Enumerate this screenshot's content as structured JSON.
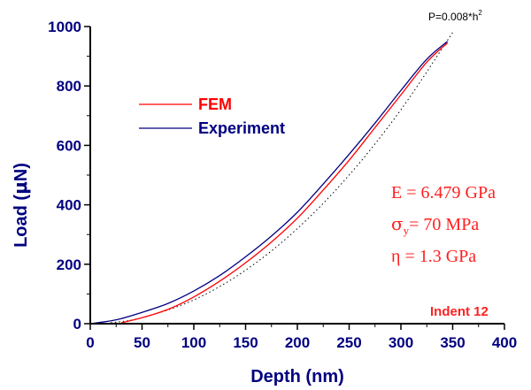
{
  "chart_data": {
    "type": "line",
    "xlabel": "Depth (nm)",
    "ylabel_parts": {
      "before": "Load (",
      "mu": "μ",
      "after": "N)"
    },
    "xlim": [
      0,
      400
    ],
    "ylim": [
      0,
      1000
    ],
    "xticks": [
      "0",
      "50",
      "100",
      "150",
      "200",
      "250",
      "300",
      "350",
      "400"
    ],
    "yticks": [
      "0",
      "200",
      "400",
      "600",
      "800",
      "1000"
    ],
    "grid": false,
    "legend_placement": "upper-left",
    "series": [
      {
        "name": "FEM",
        "color": "#ff0000",
        "x": [
          30,
          50,
          75,
          100,
          125,
          150,
          175,
          200,
          225,
          250,
          275,
          300,
          325,
          345
        ],
        "y": [
          3,
          20,
          48,
          90,
          143,
          205,
          275,
          355,
          450,
          550,
          660,
          770,
          880,
          945
        ]
      },
      {
        "name": "Experiment",
        "color": "#000080",
        "x": [
          0,
          25,
          50,
          75,
          100,
          125,
          150,
          175,
          200,
          225,
          250,
          275,
          300,
          325,
          345
        ],
        "y": [
          0,
          13,
          38,
          68,
          110,
          162,
          225,
          295,
          375,
          470,
          570,
          675,
          785,
          890,
          950
        ]
      }
    ],
    "fit_curve": {
      "label": "P=0.008*h",
      "label_sup": "2",
      "color": "#000000",
      "x": [
        20,
        50,
        100,
        150,
        200,
        250,
        300,
        350
      ],
      "y": [
        3.2,
        20,
        80,
        180,
        320,
        500,
        720,
        980
      ]
    },
    "annotations": {
      "E": "E = 6.479 GPa",
      "sigma_symbol": "σ",
      "sigma_sub": "y",
      "sigma_rest": "= 70 MPa",
      "eta": "η = 1.3 GPa",
      "indent": "Indent 12"
    }
  }
}
